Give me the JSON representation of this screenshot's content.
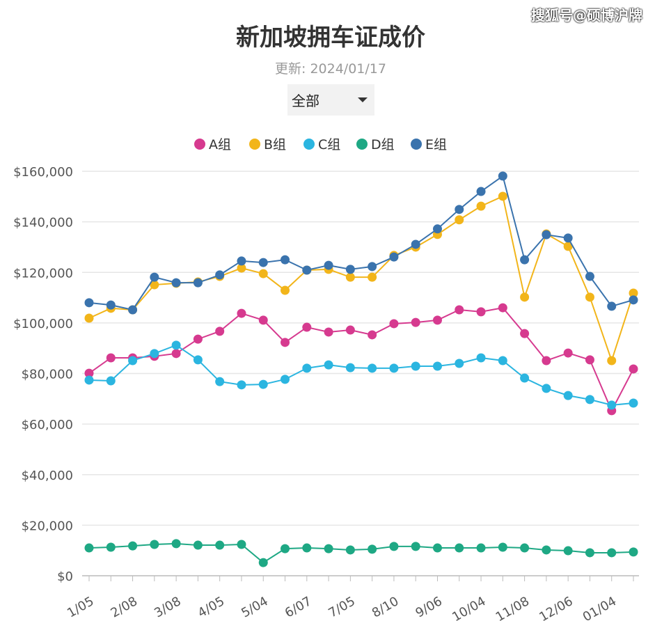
{
  "watermark": "搜狐号@硕博沪牌",
  "header": {
    "title": "新加坡拥车证成价",
    "subtitle": "更新: 2024/01/17"
  },
  "filter": {
    "selected": "全部"
  },
  "chart_data": {
    "type": "line",
    "title": "新加坡拥车证成价",
    "subtitle": "更新: 2024/01/17",
    "xlabel": "",
    "ylabel": "",
    "ylim": [
      0,
      160000
    ],
    "yticks": [
      "$0",
      "$20,000",
      "$40,000",
      "$60,000",
      "$80,000",
      "$100,000",
      "$120,000",
      "$140,000",
      "$160,000"
    ],
    "ytick_values": [
      0,
      20000,
      40000,
      60000,
      80000,
      100000,
      120000,
      140000,
      160000
    ],
    "grid": true,
    "legend": "top",
    "x_tick_labels": [
      "1/05",
      "2/08",
      "3/08",
      "4/05",
      "5/04",
      "6/07",
      "7/05",
      "8/10",
      "9/06",
      "10/04",
      "11/08",
      "12/06",
      "01/04"
    ],
    "x_count": 26,
    "series": [
      {
        "name": "A组",
        "color": "#d63a8f",
        "values": [
          80100,
          86200,
          86200,
          86800,
          87900,
          93600,
          96700,
          103800,
          101100,
          92300,
          98300,
          96400,
          97200,
          95300,
          99700,
          100200,
          101100,
          105200,
          104400,
          106000,
          95800,
          85100,
          88100,
          85400,
          65300,
          81800
        ]
      },
      {
        "name": "B组",
        "color": "#f2b51a",
        "values": [
          101900,
          105800,
          105200,
          115100,
          115700,
          116200,
          118400,
          121700,
          119500,
          112900,
          120900,
          121200,
          118100,
          118100,
          126700,
          130000,
          135000,
          140800,
          146200,
          150100,
          110200,
          135200,
          130300,
          110200,
          85100,
          111800
        ]
      },
      {
        "name": "C组",
        "color": "#2bb5e0",
        "values": [
          77400,
          77100,
          85100,
          87900,
          91200,
          85400,
          76800,
          75500,
          75700,
          77700,
          82100,
          83400,
          82300,
          82100,
          82100,
          82900,
          82900,
          84000,
          86200,
          85100,
          78200,
          74100,
          71300,
          69700,
          67500,
          68300
        ]
      },
      {
        "name": "D组",
        "color": "#1ea884",
        "values": [
          11000,
          11300,
          11800,
          12400,
          12700,
          12100,
          12100,
          12400,
          5200,
          10700,
          11000,
          10700,
          10200,
          10500,
          11600,
          11600,
          11000,
          11000,
          11000,
          11300,
          11000,
          10200,
          9900,
          9100,
          9100,
          9400
        ]
      },
      {
        "name": "E组",
        "color": "#3a73ad",
        "values": [
          108000,
          107100,
          105200,
          118100,
          115900,
          115900,
          119000,
          124500,
          123900,
          125000,
          120900,
          122800,
          121200,
          122300,
          126100,
          131100,
          137200,
          144900,
          152000,
          158100,
          125000,
          134900,
          133600,
          118400,
          106600,
          109100
        ]
      }
    ]
  }
}
